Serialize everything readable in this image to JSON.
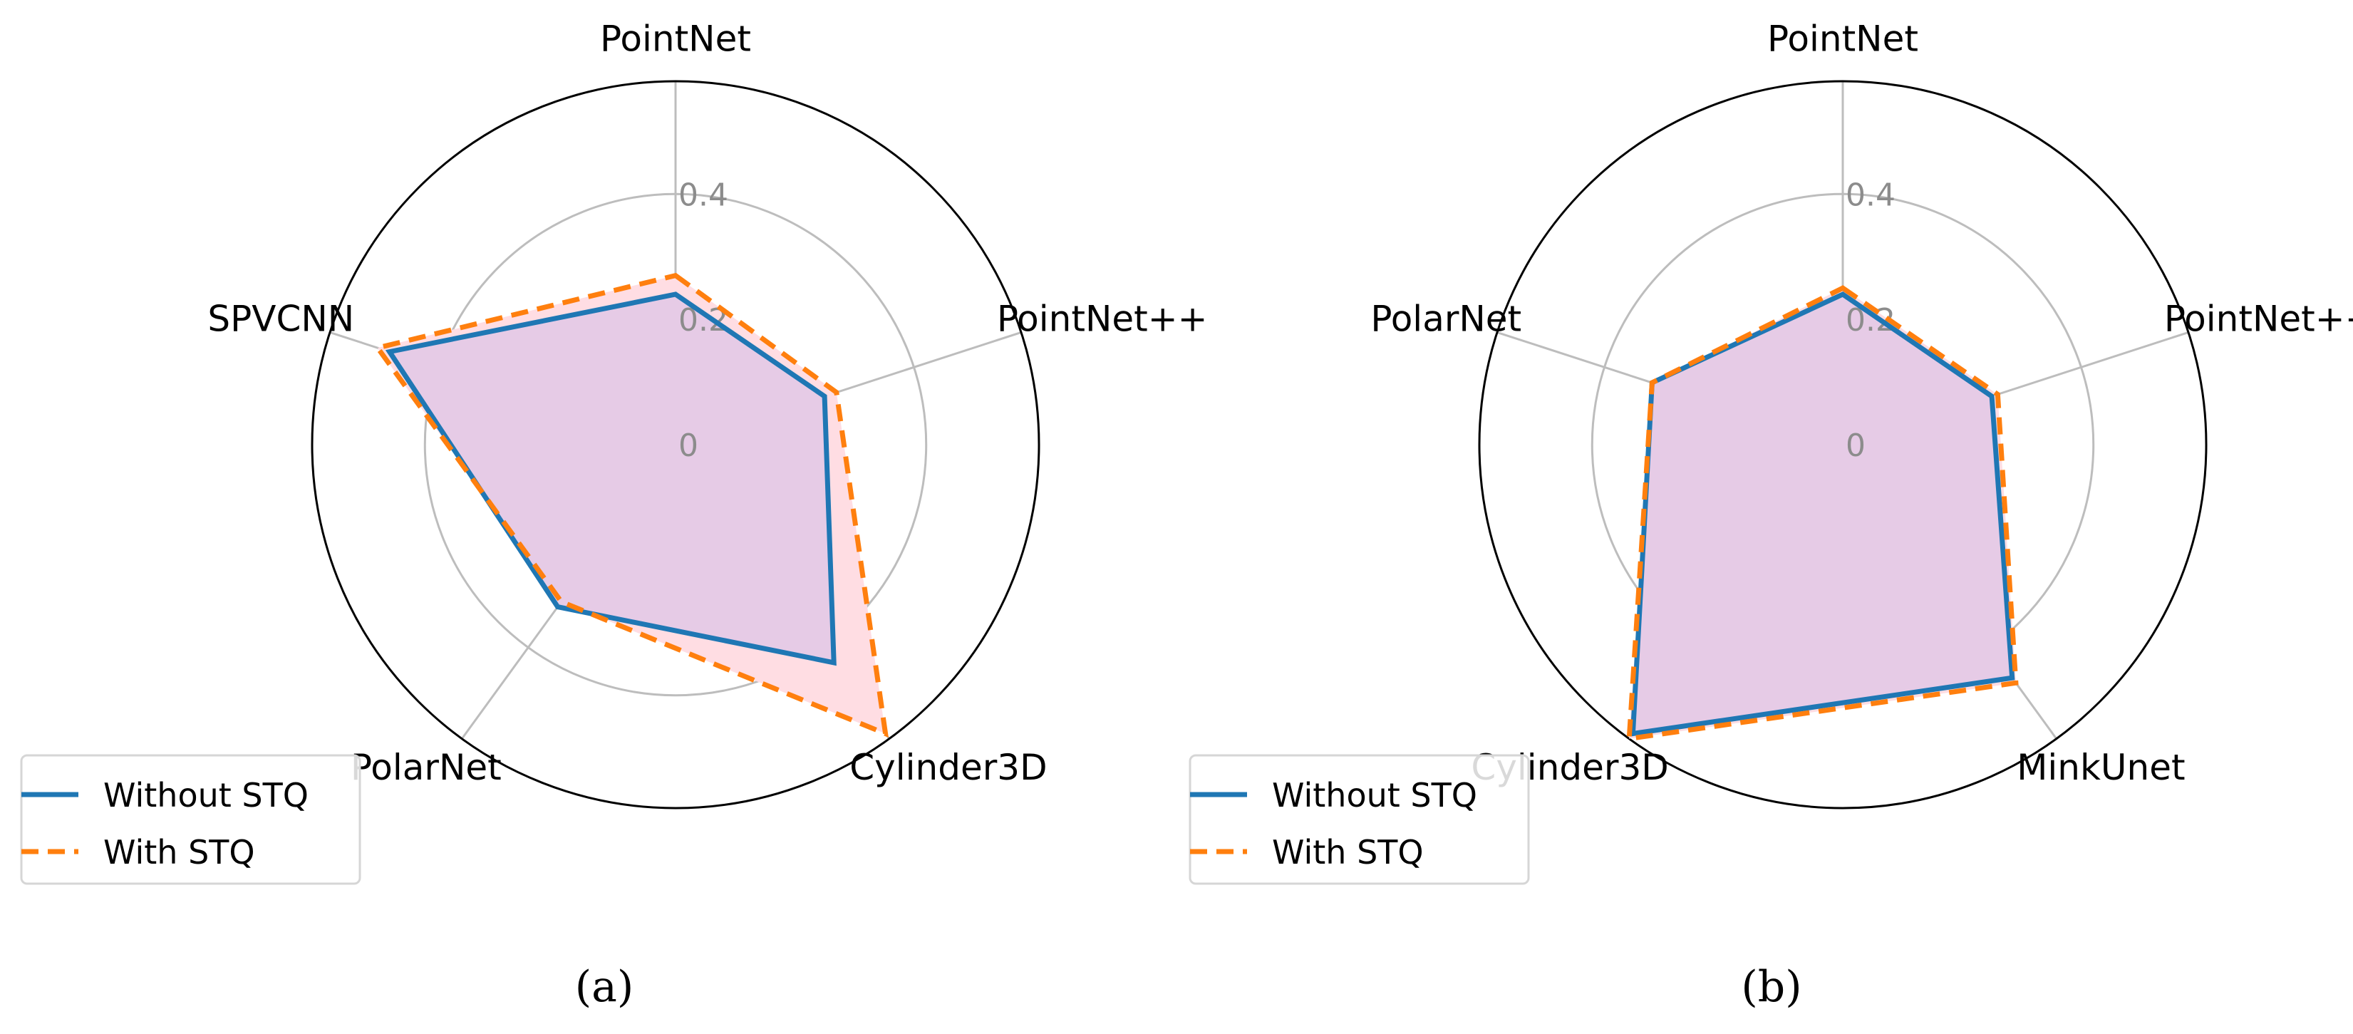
{
  "chart_data": [
    {
      "type": "radar",
      "caption": "(a)",
      "axes": [
        "PointNet",
        "PointNet++",
        "Cylinder3D",
        "PolarNet",
        "SPVCNN"
      ],
      "rlim": [
        0,
        0.58
      ],
      "rticks": [
        0,
        0.2,
        0.4
      ],
      "rtick_labels": [
        "0",
        "0.2",
        "0.4"
      ],
      "grid": true,
      "legend_position": "lower-left",
      "series": [
        {
          "name": "Without STQ",
          "values": [
            0.24,
            0.25,
            0.43,
            0.32,
            0.48
          ],
          "color": "#1f77b4",
          "style": "solid",
          "fill": "#e6cbe6"
        },
        {
          "name": "With STQ",
          "values": [
            0.27,
            0.27,
            0.57,
            0.31,
            0.5
          ],
          "color": "#ff7f0e",
          "style": "dashed",
          "fill": "#ffdde3"
        }
      ]
    },
    {
      "type": "radar",
      "caption": "(b)",
      "axes": [
        "PointNet",
        "PointNet++",
        "MinkUnet",
        "Cylinder3D",
        "PolarNet"
      ],
      "rlim": [
        0,
        0.58
      ],
      "rticks": [
        0,
        0.2,
        0.4
      ],
      "rtick_labels": [
        "0",
        "0.2",
        "0.4"
      ],
      "grid": true,
      "legend_position": "lower-left",
      "series": [
        {
          "name": "Without STQ",
          "values": [
            0.24,
            0.25,
            0.46,
            0.57,
            0.32
          ],
          "color": "#1f77b4",
          "style": "solid",
          "fill": "#e6cbe6"
        },
        {
          "name": "With STQ",
          "values": [
            0.25,
            0.26,
            0.47,
            0.58,
            0.32
          ],
          "color": "#ff7f0e",
          "style": "dashed",
          "fill": "#ffdde3"
        }
      ]
    }
  ]
}
